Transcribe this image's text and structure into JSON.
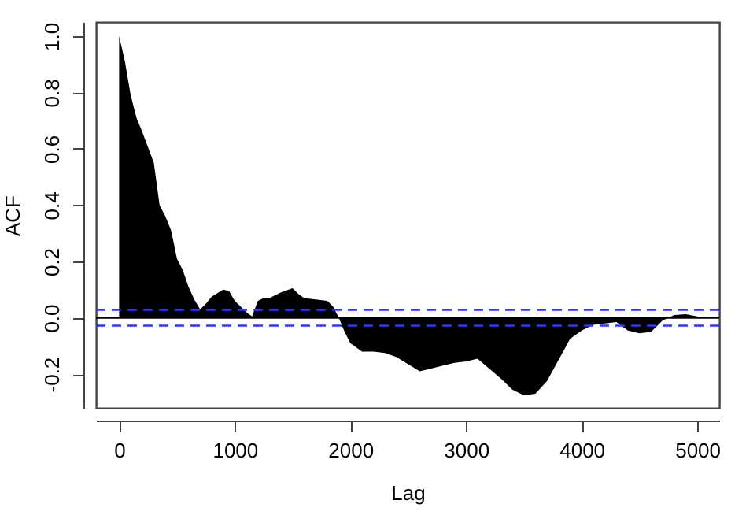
{
  "chart_data": {
    "type": "area",
    "xlabel": "Lag",
    "ylabel": "ACF",
    "x": [
      0,
      50,
      100,
      150,
      200,
      300,
      350,
      400,
      450,
      500,
      550,
      600,
      650,
      700,
      750,
      800,
      900,
      950,
      1000,
      1100,
      1150,
      1200,
      1250,
      1300,
      1400,
      1500,
      1550,
      1600,
      1700,
      1800,
      1850,
      1900,
      1950,
      2000,
      2100,
      2200,
      2300,
      2400,
      2500,
      2600,
      2700,
      2800,
      2900,
      3000,
      3100,
      3200,
      3300,
      3400,
      3500,
      3600,
      3700,
      3800,
      3900,
      4000,
      4100,
      4200,
      4300,
      4400,
      4500,
      4600,
      4700,
      4800,
      4900,
      5000
    ],
    "series": [
      {
        "color": "#000000",
        "values": [
          1.0,
          0.91,
          0.79,
          0.71,
          0.66,
          0.55,
          0.4,
          0.36,
          0.31,
          0.21,
          0.17,
          0.11,
          0.065,
          0.03,
          0.05,
          0.075,
          0.1,
          0.095,
          0.06,
          0.02,
          0.005,
          0.06,
          0.07,
          0.07,
          0.09,
          0.105,
          0.085,
          0.07,
          0.065,
          0.06,
          0.04,
          0,
          -0.05,
          -0.09,
          -0.12,
          -0.12,
          -0.125,
          -0.14,
          -0.165,
          -0.19,
          -0.18,
          -0.17,
          -0.16,
          -0.155,
          -0.145,
          -0.18,
          -0.215,
          -0.255,
          -0.275,
          -0.27,
          -0.225,
          -0.15,
          -0.075,
          -0.045,
          -0.025,
          -0.02,
          -0.015,
          -0.045,
          -0.055,
          -0.05,
          -0.01,
          0.01,
          0.013,
          0.005
        ]
      }
    ],
    "xlim": [
      -200,
      5190
    ],
    "ylim": [
      -0.32,
      1.05
    ],
    "xticks": [
      0,
      1000,
      2000,
      3000,
      4000,
      5000
    ],
    "yticks": [
      {
        "value": -0.2,
        "label": "-0.2"
      },
      {
        "value": 0,
        "label": "0.0"
      },
      {
        "value": 0.2,
        "label": "0.2"
      },
      {
        "value": 0.4,
        "label": "0.4"
      },
      {
        "value": 0.6,
        "label": "0.6"
      },
      {
        "value": 0.8,
        "label": "0.8"
      },
      {
        "value": 1,
        "label": "1.0"
      }
    ],
    "ref_lines": [
      {
        "axis": "y",
        "value": 0,
        "color": "#000000",
        "line_style": "solid"
      },
      {
        "axis": "y",
        "value": 0.028,
        "color": "#3333ff",
        "line_style": "dashed"
      },
      {
        "axis": "y",
        "value": -0.028,
        "color": "#3333ff",
        "line_style": "dashed"
      }
    ],
    "grid": false
  }
}
